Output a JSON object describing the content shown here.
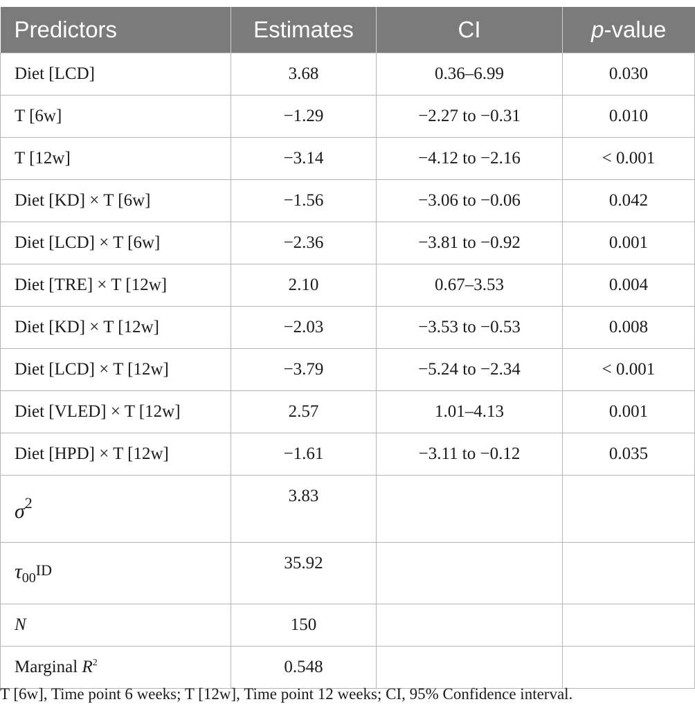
{
  "header": {
    "predictors": "Predictors",
    "estimates": "Estimates",
    "ci": "CI",
    "p_italic": "p",
    "p_rest": "-value"
  },
  "rows": [
    {
      "predictor": "Diet [LCD]",
      "estimate": "3.68",
      "ci": "0.36–6.99",
      "p": "0.030"
    },
    {
      "predictor": "T [6w]",
      "estimate": "−1.29",
      "ci": "−2.27 to −0.31",
      "p": "0.010"
    },
    {
      "predictor": "T [12w]",
      "estimate": "−3.14",
      "ci": "−4.12 to −2.16",
      "p": "< 0.001"
    },
    {
      "predictor": "Diet [KD] × T [6w]",
      "estimate": "−1.56",
      "ci": "−3.06 to −0.06",
      "p": "0.042"
    },
    {
      "predictor": "Diet [LCD] × T [6w]",
      "estimate": "−2.36",
      "ci": "−3.81 to −0.92",
      "p": "0.001"
    },
    {
      "predictor": "Diet [TRE] × T [12w]",
      "estimate": "2.10",
      "ci": "0.67–3.53",
      "p": "0.004"
    },
    {
      "predictor": "Diet [KD] × T [12w]",
      "estimate": "−2.03",
      "ci": "−3.53 to −0.53",
      "p": "0.008"
    },
    {
      "predictor": "Diet [LCD] × T [12w]",
      "estimate": "−3.79",
      "ci": "−5.24 to −2.34",
      "p": "< 0.001"
    },
    {
      "predictor": "Diet [VLED] × T [12w]",
      "estimate": "2.57",
      "ci": "1.01–4.13",
      "p": "0.001"
    },
    {
      "predictor": "Diet [HPD] × T [12w]",
      "estimate": "−1.61",
      "ci": "−3.11 to −0.12",
      "p": "0.035"
    }
  ],
  "stats": {
    "sigma_symbol": "σ",
    "sigma_sup": "2",
    "sigma_value": "3.83",
    "tau_symbol": "τ",
    "tau_sub": "00",
    "tau_sup": "ID",
    "tau_value": "35.92",
    "n_label": "N",
    "n_value": "150",
    "r2_label": "Marginal ",
    "r2_symbol": "R",
    "r2_sup": "2",
    "r2_value": "0.548"
  },
  "footnote": "T [6w], Time point 6 weeks; T [12w], Time point 12 weeks; CI, 95% Confidence interval."
}
